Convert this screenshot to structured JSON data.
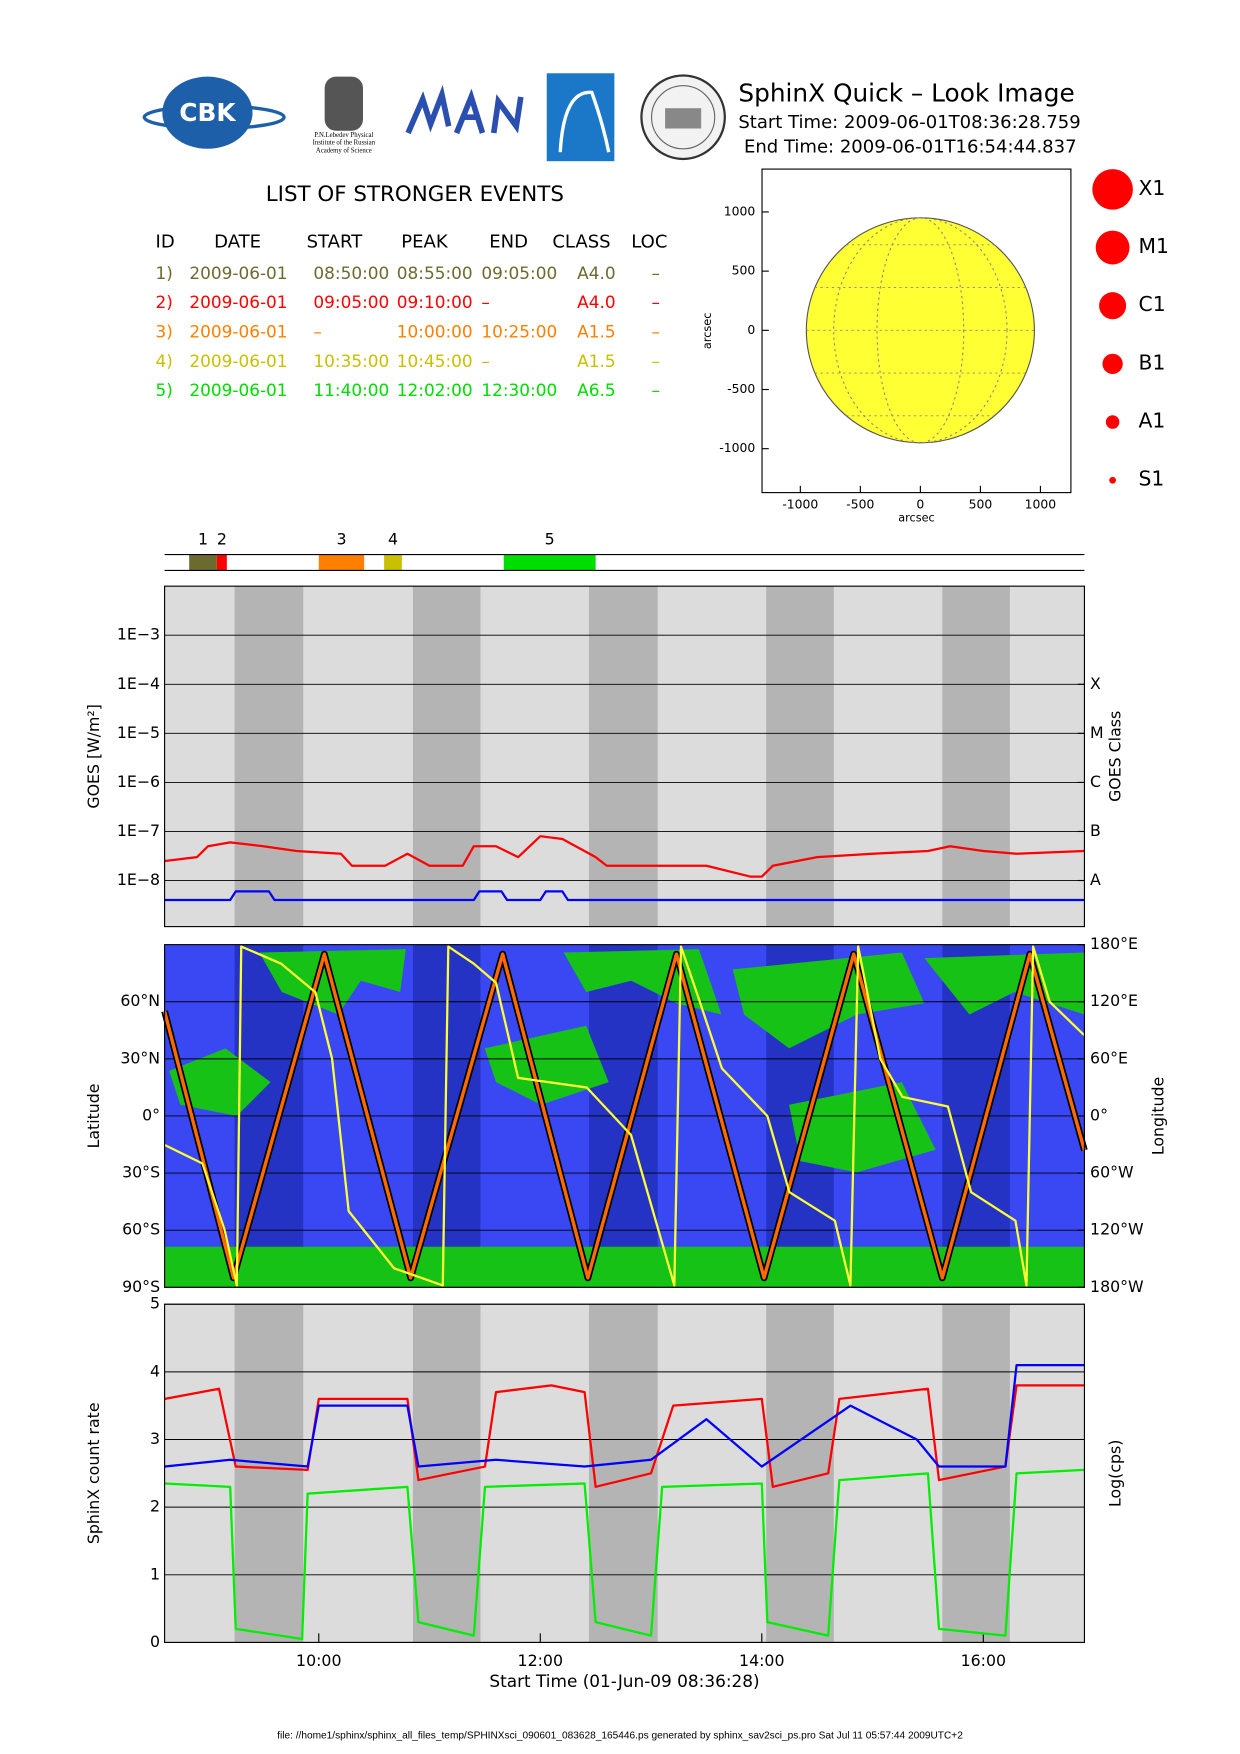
{
  "header": {
    "logo_text": "CBK",
    "lebedev_caption": [
      "P.N.Lebedev Physical",
      "Institute of the Russian",
      "Academy of Science"
    ],
    "title": "SphinX Quick – Look Image",
    "start_time": "Start Time: 2009-06-01T08:36:28.759",
    "end_time": "End Time: 2009-06-01T16:54:44.837"
  },
  "events": {
    "title": "LIST OF STRONGER EVENTS",
    "columns": [
      "ID",
      "DATE",
      "START",
      "PEAK",
      "END",
      "CLASS",
      "LOC"
    ],
    "rows": [
      {
        "color": "#6b6b30",
        "cells": [
          "1)",
          "2009-06-01",
          "08:50:00",
          "08:55:00",
          "09:05:00",
          "A4.0",
          "–"
        ]
      },
      {
        "color": "#ff0000",
        "cells": [
          "2)",
          "2009-06-01",
          "09:05:00",
          "09:10:00",
          "–",
          "A4.0",
          "–"
        ]
      },
      {
        "color": "#ff7f00",
        "cells": [
          "3)",
          "2009-06-01",
          "–",
          "10:00:00",
          "10:25:00",
          "A1.5",
          "–"
        ]
      },
      {
        "color": "#c8c000",
        "cells": [
          "4)",
          "2009-06-01",
          "10:35:00",
          "10:45:00",
          "–",
          "A1.5",
          "–"
        ]
      },
      {
        "color": "#00dd00",
        "cells": [
          "5)",
          "2009-06-01",
          "11:40:00",
          "12:02:00",
          "12:30:00",
          "A6.5",
          "–"
        ]
      }
    ]
  },
  "chart_data": [
    {
      "type": "disk",
      "xlabel": "arcsec",
      "ylabel": "arcsec",
      "xlim": [
        -1319,
        1254
      ],
      "ylim": [
        -1371,
        1362
      ],
      "xticks": [
        -1000,
        -500,
        0,
        500,
        1000
      ],
      "yticks": [
        -1000,
        -500,
        0,
        500,
        1000
      ],
      "disk_radius": 950,
      "disk_color": "#ffff33",
      "size_legend": {
        "labels": [
          "X1",
          "M1",
          "C1",
          "B1",
          "A1",
          "S1"
        ],
        "color": "#ff0000"
      }
    },
    {
      "type": "timeline",
      "xlim": [
        8.608,
        16.913
      ],
      "events": [
        {
          "label": "1",
          "start": 8.83,
          "end": 9.08,
          "color": "#6b6b30"
        },
        {
          "label": "2",
          "start": 9.08,
          "end": 9.17,
          "color": "#ff0000"
        },
        {
          "label": "3",
          "start": 10.0,
          "end": 10.41,
          "color": "#ff7f00"
        },
        {
          "label": "4",
          "start": 10.59,
          "end": 10.75,
          "color": "#c8c000"
        },
        {
          "label": "5",
          "start": 11.67,
          "end": 12.5,
          "color": "#00dd00"
        }
      ]
    },
    {
      "type": "line",
      "log_scale": true,
      "grid": true,
      "ylabel": "GOES [W/m²]",
      "y2label": "GOES Class",
      "background": "#dcdcdc",
      "shade_color": "#b4b4b4",
      "shaded": [
        [
          9.24,
          9.86
        ],
        [
          10.85,
          11.46
        ],
        [
          12.44,
          13.06
        ],
        [
          14.04,
          14.65
        ],
        [
          15.63,
          16.24
        ]
      ],
      "xlim": [
        8.608,
        16.913
      ],
      "ylim": [
        1.15e-09,
        0.01
      ],
      "y2lim": [
        1.15e-09,
        0.01
      ],
      "yticks": [
        {
          "value": 1e-08,
          "label": "1E−8"
        },
        {
          "value": 1e-07,
          "label": "1E−7"
        },
        {
          "value": 1e-06,
          "label": "1E−6"
        },
        {
          "value": 1e-05,
          "label": "1E−5"
        },
        {
          "value": 0.0001,
          "label": "1E−4"
        },
        {
          "value": 0.001,
          "label": "1E−3"
        }
      ],
      "y2ticks": [
        {
          "value": 1e-08,
          "label": "A"
        },
        {
          "value": 1e-07,
          "label": "B"
        },
        {
          "value": 1e-06,
          "label": "C"
        },
        {
          "value": 1e-05,
          "label": "M"
        },
        {
          "value": 0.0001,
          "label": "X"
        }
      ],
      "series": [
        {
          "color": "#0000ff",
          "x": [
            8.61,
            9.2,
            9.25,
            9.55,
            9.6,
            11.4,
            11.45,
            11.65,
            11.7,
            12.0,
            12.05,
            12.2,
            12.25,
            16.91
          ],
          "values": [
            4e-09,
            4e-09,
            6e-09,
            6e-09,
            4e-09,
            4e-09,
            6e-09,
            6e-09,
            4e-09,
            4e-09,
            6e-09,
            6e-09,
            4e-09,
            4e-09
          ]
        },
        {
          "color": "#ff0000",
          "x": [
            8.61,
            8.9,
            9.0,
            9.2,
            9.5,
            9.8,
            10.2,
            10.3,
            10.6,
            10.8,
            11.0,
            11.3,
            11.4,
            11.6,
            11.8,
            12.0,
            12.2,
            12.5,
            12.6,
            13.5,
            13.9,
            14.0,
            14.1,
            14.5,
            15.0,
            15.5,
            15.7,
            16.0,
            16.3,
            16.91
          ],
          "values": [
            2.5e-08,
            3e-08,
            5e-08,
            6e-08,
            5e-08,
            4e-08,
            3.5e-08,
            2e-08,
            2e-08,
            3.5e-08,
            2e-08,
            2e-08,
            5e-08,
            5e-08,
            3e-08,
            8e-08,
            7e-08,
            3e-08,
            2e-08,
            2e-08,
            1.2e-08,
            1.2e-08,
            2e-08,
            3e-08,
            3.5e-08,
            4e-08,
            5e-08,
            4e-08,
            3.5e-08,
            4e-08
          ]
        }
      ]
    },
    {
      "type": "track",
      "grid": true,
      "ylabel": "Latitude",
      "y2label": "Longitude",
      "background": "#3a48f4",
      "shade_color": "#2433c4",
      "shaded": [
        [
          9.24,
          9.86
        ],
        [
          10.85,
          11.46
        ],
        [
          12.44,
          13.06
        ],
        [
          14.04,
          14.65
        ],
        [
          15.63,
          16.24
        ]
      ],
      "xlim": [
        8.608,
        16.913
      ],
      "ylim": [
        -90,
        90
      ],
      "y2lim": [
        -180,
        180
      ],
      "yticks": [
        {
          "value": -90,
          "label": "90°S"
        },
        {
          "value": -60,
          "label": "60°S"
        },
        {
          "value": -30,
          "label": "30°S"
        },
        {
          "value": 0,
          "label": "0°"
        },
        {
          "value": 30,
          "label": "30°N"
        },
        {
          "value": 60,
          "label": "60°N"
        }
      ],
      "y2ticks": [
        {
          "value": -180,
          "label": "180°W"
        },
        {
          "value": -120,
          "label": "120°W"
        },
        {
          "value": -60,
          "label": "60°W"
        },
        {
          "value": 0,
          "label": "0°"
        },
        {
          "value": 60,
          "label": "60°E"
        },
        {
          "value": 120,
          "label": "120°E"
        },
        {
          "value": 180,
          "label": "180°E"
        }
      ],
      "series": [
        {
          "color": "#ff6a00",
          "edge_color": "#000000",
          "x": [
            8.608,
            9.23,
            10.05,
            10.83,
            11.66,
            12.43,
            13.23,
            14.02,
            14.83,
            15.63,
            16.42,
            16.913
          ],
          "values": [
            55,
            -85,
            85,
            -85,
            85,
            -85,
            85,
            -85,
            85,
            -85,
            85,
            -18
          ]
        },
        {
          "color": "#ffff33",
          "axis": "y2",
          "x": [
            8.6,
            8.95,
            9.15,
            9.26,
            9.3,
            9.66,
            9.97,
            10.12,
            10.27,
            10.68,
            11.12,
            11.17,
            11.4,
            11.6,
            11.8,
            12.42,
            12.82,
            13.21,
            13.27,
            13.44,
            13.64,
            14.05,
            14.25,
            14.66,
            14.8,
            14.87,
            15.07,
            15.27,
            15.68,
            15.89,
            16.29,
            16.39,
            16.45,
            16.6,
            16.91
          ],
          "values": [
            -30,
            -50,
            -120,
            -178,
            178,
            160,
            130,
            60,
            -100,
            -160,
            -178,
            178,
            160,
            140,
            40,
            30,
            -20,
            -178,
            178,
            120,
            50,
            0,
            -80,
            -110,
            -178,
            178,
            60,
            20,
            10,
            -80,
            -110,
            -178,
            178,
            120,
            85
          ]
        }
      ]
    },
    {
      "type": "line",
      "grid": true,
      "ylabel": "SphinX count rate",
      "y2label": "Log(cps)",
      "xlabel": "Start Time (01-Jun-09 08:36:28)",
      "background": "#dcdcdc",
      "shade_color": "#b4b4b4",
      "shaded": [
        [
          9.24,
          9.86
        ],
        [
          10.85,
          11.46
        ],
        [
          12.44,
          13.06
        ],
        [
          14.04,
          14.65
        ],
        [
          15.63,
          16.24
        ]
      ],
      "xlim": [
        8.608,
        16.913
      ],
      "ylim": [
        0,
        5
      ],
      "xticks": [
        {
          "value": 10,
          "label": "10:00"
        },
        {
          "value": 12,
          "label": "12:00"
        },
        {
          "value": 14,
          "label": "14:00"
        },
        {
          "value": 16,
          "label": "16:00"
        }
      ],
      "yticks": [
        0,
        1,
        2,
        3,
        4,
        5
      ],
      "series": [
        {
          "color": "#ff0000",
          "x": [
            8.61,
            9.1,
            9.25,
            9.9,
            10.0,
            10.8,
            10.9,
            11.5,
            11.6,
            12.1,
            12.4,
            12.5,
            13.0,
            13.2,
            14.0,
            14.1,
            14.6,
            14.7,
            15.5,
            15.6,
            16.2,
            16.3,
            16.91
          ],
          "values": [
            3.6,
            3.75,
            2.6,
            2.55,
            3.6,
            3.6,
            2.4,
            2.6,
            3.7,
            3.8,
            3.7,
            2.3,
            2.5,
            3.5,
            3.6,
            2.3,
            2.5,
            3.6,
            3.75,
            2.4,
            2.6,
            3.8,
            3.8
          ]
        },
        {
          "color": "#00ee00",
          "x": [
            8.61,
            9.2,
            9.25,
            9.85,
            9.9,
            10.8,
            10.9,
            11.4,
            11.5,
            12.4,
            12.5,
            13.0,
            13.1,
            14.0,
            14.05,
            14.6,
            14.7,
            15.5,
            15.6,
            16.2,
            16.3,
            16.91
          ],
          "values": [
            2.35,
            2.3,
            0.2,
            0.05,
            2.2,
            2.3,
            0.3,
            0.1,
            2.3,
            2.35,
            0.3,
            0.1,
            2.3,
            2.35,
            0.3,
            0.1,
            2.4,
            2.5,
            0.2,
            0.1,
            2.5,
            2.55
          ]
        },
        {
          "color": "#0000ff",
          "x": [
            8.61,
            9.2,
            9.9,
            10.0,
            10.8,
            10.9,
            11.6,
            12.4,
            13.0,
            13.5,
            14.0,
            14.8,
            15.4,
            15.6,
            16.2,
            16.3,
            16.91
          ],
          "values": [
            2.6,
            2.7,
            2.6,
            3.5,
            3.5,
            2.6,
            2.7,
            2.6,
            2.7,
            3.3,
            2.6,
            3.5,
            3.0,
            2.6,
            2.6,
            4.1,
            4.1
          ]
        }
      ]
    }
  ],
  "footer": "file: //home1/sphinx/sphinx_all_files_temp/SPHINXsci_090601_083628_165446.ps generated by sphinx_sav2sci_ps.pro Sat Jul 11 05:57:44 2009UTC+2"
}
